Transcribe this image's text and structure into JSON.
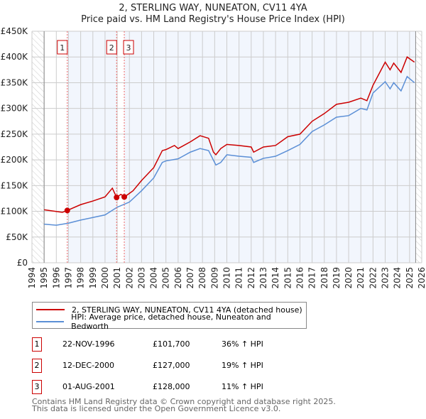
{
  "chart_data": {
    "type": "line",
    "title": "2, STERLING WAY, NUNEATON, CV11 4YA",
    "subtitle": "Price paid vs. HM Land Registry's House Price Index (HPI)",
    "xlim": [
      1994,
      2026
    ],
    "ylim": [
      0,
      450000
    ],
    "x_ticks": [
      "1994",
      "1995",
      "1996",
      "1997",
      "1998",
      "1999",
      "2000",
      "2001",
      "2002",
      "2003",
      "2004",
      "2005",
      "2006",
      "2007",
      "2008",
      "2009",
      "2010",
      "2011",
      "2012",
      "2013",
      "2014",
      "2015",
      "2016",
      "2017",
      "2018",
      "2019",
      "2020",
      "2021",
      "2022",
      "2023",
      "2024",
      "2025",
      "2026"
    ],
    "y_ticks": [
      {
        "v": 0,
        "l": "£0"
      },
      {
        "v": 50000,
        "l": "£50K"
      },
      {
        "v": 100000,
        "l": "£100K"
      },
      {
        "v": 150000,
        "l": "£150K"
      },
      {
        "v": 200000,
        "l": "£200K"
      },
      {
        "v": 250000,
        "l": "£250K"
      },
      {
        "v": 300000,
        "l": "£300K"
      },
      {
        "v": 350000,
        "l": "£350K"
      },
      {
        "v": 400000,
        "l": "£400K"
      },
      {
        "v": 450000,
        "l": "£450K"
      }
    ],
    "grid": true,
    "series": [
      {
        "name": "2, STERLING WAY, NUNEATON, CV11 4YA (detached house)",
        "color": "#cc0000",
        "x": [
          1995,
          1996.5,
          1996.9,
          1998,
          1999,
          2000,
          2000.6,
          2000.95,
          2001.3,
          2001.6,
          2002.3,
          2003,
          2004,
          2004.7,
          2005,
          2005.7,
          2006,
          2007,
          2007.8,
          2008.5,
          2008.9,
          2009.1,
          2009.5,
          2010,
          2011,
          2012,
          2012.2,
          2013,
          2014,
          2015,
          2016,
          2017,
          2018,
          2019,
          2020,
          2021,
          2021.5,
          2022,
          2023,
          2023.4,
          2023.7,
          2024.3,
          2024.8,
          2025.4
        ],
        "y": [
          103000,
          98000,
          101700,
          113000,
          120000,
          128000,
          145000,
          127000,
          133000,
          128000,
          140000,
          160000,
          185000,
          218000,
          220000,
          228000,
          222000,
          235000,
          247000,
          242000,
          215000,
          210000,
          222000,
          230000,
          228000,
          225000,
          215000,
          225000,
          228000,
          245000,
          250000,
          275000,
          290000,
          308000,
          312000,
          320000,
          315000,
          345000,
          390000,
          375000,
          388000,
          370000,
          400000,
          390000
        ]
      },
      {
        "name": "HPI: Average price, detached house, Nuneaton and Bedworth",
        "color": "#5b8fd6",
        "x": [
          1995,
          1996,
          1997,
          1998,
          1999,
          2000,
          2001,
          2002,
          2003,
          2004,
          2004.7,
          2005,
          2006,
          2007,
          2007.8,
          2008.5,
          2009.1,
          2009.5,
          2010,
          2011,
          2012,
          2012.2,
          2013,
          2014,
          2015,
          2016,
          2017,
          2018,
          2019,
          2020,
          2021,
          2021.5,
          2022,
          2023,
          2023.4,
          2023.7,
          2024.3,
          2024.8,
          2025.4
        ],
        "y": [
          75000,
          73000,
          77000,
          83000,
          88000,
          93000,
          108000,
          118000,
          140000,
          165000,
          195000,
          198000,
          202000,
          215000,
          222000,
          218000,
          190000,
          195000,
          210000,
          207000,
          205000,
          195000,
          203000,
          207000,
          218000,
          230000,
          255000,
          268000,
          283000,
          286000,
          300000,
          297000,
          330000,
          352000,
          338000,
          350000,
          334000,
          362000,
          350000
        ]
      }
    ],
    "sales": [
      {
        "n": "1",
        "x": 1996.9,
        "y": 101700,
        "date": "22-NOV-1996",
        "price": "£101,700",
        "hpi": "36% ↑ HPI"
      },
      {
        "n": "2",
        "x": 2000.95,
        "y": 127000,
        "date": "12-DEC-2000",
        "price": "£127,000",
        "hpi": "19% ↑ HPI"
      },
      {
        "n": "3",
        "x": 2001.58,
        "y": 128000,
        "date": "01-AUG-2001",
        "price": "£128,000",
        "hpi": "11% ↑ HPI"
      }
    ],
    "legend_position": "bottom"
  },
  "footer": {
    "line1": "Contains HM Land Registry data © Crown copyright and database right 2025.",
    "line2": "This data is licensed under the Open Government Licence v3.0."
  }
}
